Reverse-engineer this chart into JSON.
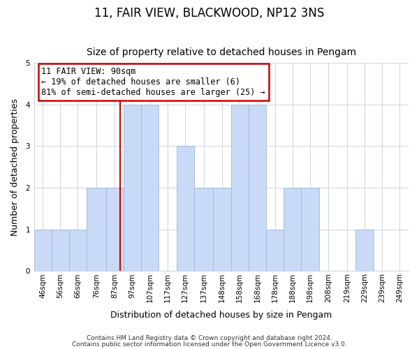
{
  "title": "11, FAIR VIEW, BLACKWOOD, NP12 3NS",
  "subtitle": "Size of property relative to detached houses in Pengam",
  "xlabel": "Distribution of detached houses by size in Pengam",
  "ylabel": "Number of detached properties",
  "bar_color": "#c8daf5",
  "bar_edge_color": "#a0b8d8",
  "bin_labels": [
    "46sqm",
    "56sqm",
    "66sqm",
    "76sqm",
    "87sqm",
    "97sqm",
    "107sqm",
    "117sqm",
    "127sqm",
    "137sqm",
    "148sqm",
    "158sqm",
    "168sqm",
    "178sqm",
    "188sqm",
    "198sqm",
    "208sqm",
    "219sqm",
    "229sqm",
    "239sqm",
    "249sqm"
  ],
  "bin_edges": [
    41,
    51,
    61,
    71,
    82,
    92,
    102,
    112,
    122,
    132,
    143,
    153,
    163,
    173,
    183,
    193,
    203,
    214,
    224,
    234,
    244,
    254
  ],
  "bar_heights": [
    1,
    1,
    1,
    2,
    2,
    4,
    4,
    0,
    3,
    2,
    2,
    4,
    4,
    1,
    2,
    2,
    0,
    0,
    1,
    0,
    0
  ],
  "ylim": [
    0,
    5
  ],
  "yticks": [
    0,
    1,
    2,
    3,
    4,
    5
  ],
  "property_size": 90,
  "red_line_color": "#cc0000",
  "annotation_text": "11 FAIR VIEW: 90sqm\n← 19% of detached houses are smaller (6)\n81% of semi-detached houses are larger (25) →",
  "annotation_box_color": "#ffffff",
  "annotation_box_edge_color": "#cc0000",
  "footnote1": "Contains HM Land Registry data © Crown copyright and database right 2024.",
  "footnote2": "Contains public sector information licensed under the Open Government Licence v3.0.",
  "background_color": "#ffffff",
  "plot_background_color": "#ffffff",
  "grid_color": "#d0d8e4",
  "title_fontsize": 12,
  "subtitle_fontsize": 10,
  "tick_label_fontsize": 7.5,
  "ylabel_fontsize": 9,
  "xlabel_fontsize": 9,
  "footnote_fontsize": 6.5
}
